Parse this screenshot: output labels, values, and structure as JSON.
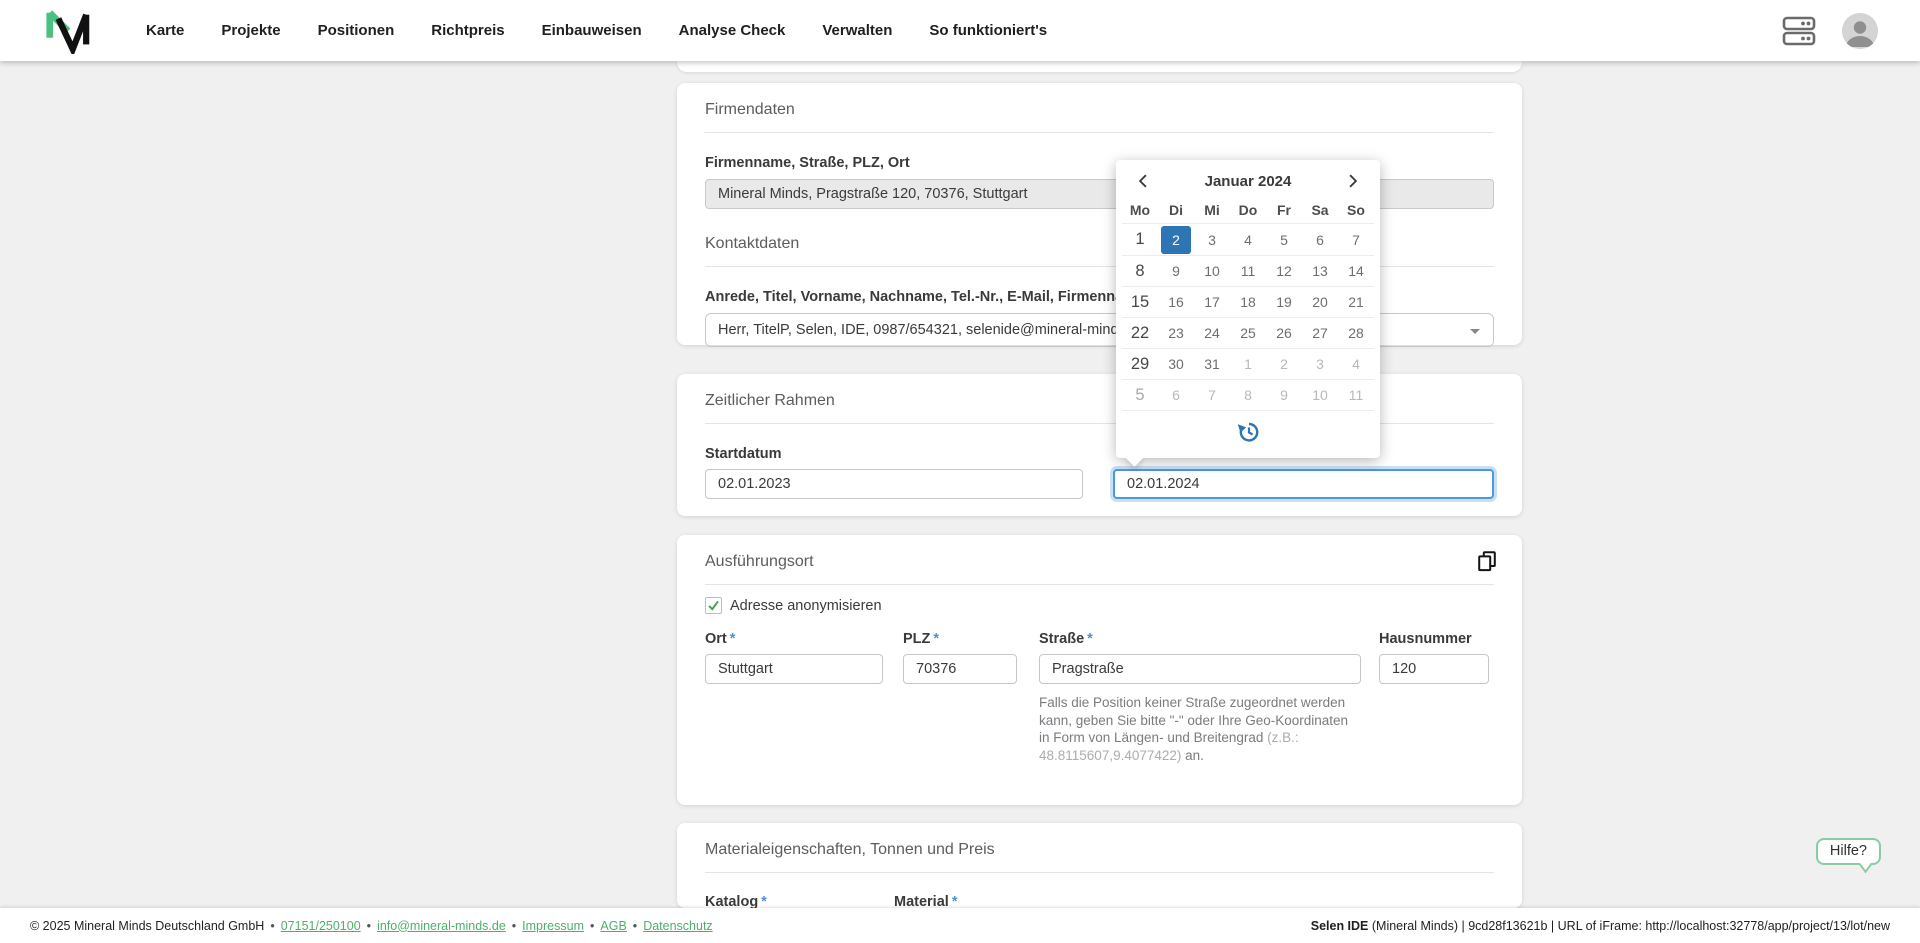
{
  "app": {
    "brand": "Mineral Minds",
    "nav_items": [
      "Karte",
      "Projekte",
      "Positionen",
      "Richtpreis",
      "Einbauweisen",
      "Analyse Check",
      "Verwalten",
      "So funktioniert's"
    ]
  },
  "firmendaten": {
    "title": "Firmendaten",
    "label": "Firmenname, Straße, PLZ, Ort",
    "value": "Mineral Minds, Pragstraße 120, 70376, Stuttgart"
  },
  "kontaktdaten": {
    "title": "Kontaktdaten",
    "label": "Anrede, Titel, Vorname, Nachname, Tel.-Nr., E-Mail, Firmenname",
    "value": "Herr, TitelP, Selen, IDE, 0987/654321, selenide@mineral-minds.de"
  },
  "zeitraum": {
    "title": "Zeitlicher Rahmen",
    "start_label": "Startdatum",
    "start_value": "02.01.2023",
    "end_value": "02.01.2024"
  },
  "calendar": {
    "month_label": "Januar 2024",
    "weekdays": [
      "Mo",
      "Di",
      "Mi",
      "Do",
      "Fr",
      "Sa",
      "So"
    ],
    "selected_day": "2",
    "rows": [
      [
        {
          "d": "1",
          "v": "mo"
        },
        {
          "d": "2",
          "v": "sel"
        },
        {
          "d": "3"
        },
        {
          "d": "4"
        },
        {
          "d": "5"
        },
        {
          "d": "6"
        },
        {
          "d": "7"
        }
      ],
      [
        {
          "d": "8",
          "v": "mo"
        },
        {
          "d": "9"
        },
        {
          "d": "10"
        },
        {
          "d": "11"
        },
        {
          "d": "12"
        },
        {
          "d": "13"
        },
        {
          "d": "14"
        }
      ],
      [
        {
          "d": "15",
          "v": "mo"
        },
        {
          "d": "16"
        },
        {
          "d": "17"
        },
        {
          "d": "18"
        },
        {
          "d": "19"
        },
        {
          "d": "20"
        },
        {
          "d": "21"
        }
      ],
      [
        {
          "d": "22",
          "v": "mo"
        },
        {
          "d": "23"
        },
        {
          "d": "24"
        },
        {
          "d": "25"
        },
        {
          "d": "26"
        },
        {
          "d": "27"
        },
        {
          "d": "28"
        }
      ],
      [
        {
          "d": "29",
          "v": "mo"
        },
        {
          "d": "30"
        },
        {
          "d": "31"
        },
        {
          "d": "1",
          "v": "muted"
        },
        {
          "d": "2",
          "v": "muted"
        },
        {
          "d": "3",
          "v": "muted"
        },
        {
          "d": "4",
          "v": "muted"
        }
      ],
      [
        {
          "d": "5",
          "v": "mo muted"
        },
        {
          "d": "6",
          "v": "muted"
        },
        {
          "d": "7",
          "v": "muted"
        },
        {
          "d": "8",
          "v": "muted"
        },
        {
          "d": "9",
          "v": "muted"
        },
        {
          "d": "10",
          "v": "muted"
        },
        {
          "d": "11",
          "v": "muted"
        }
      ]
    ]
  },
  "ausfuehrungsort": {
    "title": "Ausführungsort",
    "anonymize_label": "Adresse anonymisieren",
    "anonymize_checked": true,
    "fields": {
      "ort": {
        "label": "Ort",
        "required": "*",
        "value": "Stuttgart"
      },
      "plz": {
        "label": "PLZ",
        "required": "*",
        "value": "70376"
      },
      "strasse": {
        "label": "Straße",
        "required": "*",
        "value": "Pragstraße"
      },
      "hausnummer": {
        "label": "Hausnummer",
        "value": "120"
      }
    },
    "hint_part1": "Falls die Position keiner Straße zugeordnet werden kann, geben Sie bitte \"-\" oder Ihre Geo-Koordinaten in Form von Längen- und Breitengrad ",
    "hint_muted": "(z.B.: 48.8115607,9.4077422)",
    "hint_part2": " an."
  },
  "material": {
    "title": "Materialeigenschaften, Tonnen und Preis",
    "katalog_label": "Katalog",
    "material_label": "Material",
    "required": "*"
  },
  "help_button": {
    "label": "Hilfe?"
  },
  "footer": {
    "copyright": "© 2025 Mineral Minds Deutschland GmbH",
    "separator": "•",
    "links": [
      "07151/250100",
      "info@mineral-minds.de",
      "Impressum",
      "AGB",
      "Datenschutz"
    ],
    "status_bold": "Selen IDE",
    "status_rest": " (Mineral Minds) | 9cd28f13621b | URL of iFrame: http://localhost:32778/app/project/13/lot/new"
  },
  "colors": {
    "selected_day_blue": "#2e75b5",
    "focus_blue": "#4b99e0",
    "link_green": "#4db06a",
    "brand_green": "#4cc07e",
    "check_green": "#43a047",
    "required_blue": "#4a90d9"
  }
}
